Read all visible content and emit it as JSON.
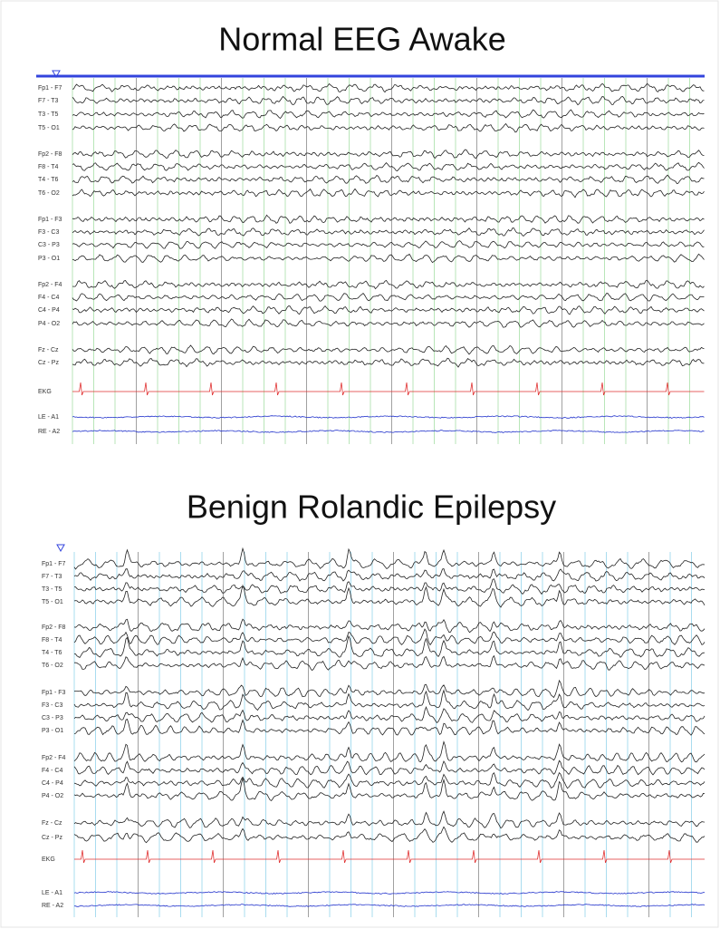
{
  "panels": [
    {
      "title": "Normal EEG Awake",
      "channels": [
        "Fp1 - F7",
        "F7 - T3",
        "T3 - T5",
        "T5 - O1",
        "Fp2 - F8",
        "F8 - T4",
        "T4 - T6",
        "T6 - O2",
        "Fp1 - F3",
        "F3 - C3",
        "C3 - P3",
        "P3 - O1",
        "Fp2 - F4",
        "F4 - C4",
        "C4 - P4",
        "P4 - O2",
        "Fz - Cz",
        "Cz - Pz",
        "EKG",
        "LE - A1",
        "RE - A2"
      ]
    },
    {
      "title": "Benign Rolandic Epilepsy",
      "channels": [
        "Fp1 - F7",
        "F7 - T3",
        "T3 - T5",
        "T5 - O1",
        "Fp2 - F8",
        "F8 - T4",
        "T4 - T6",
        "T6 - O2",
        "Fp1 - F3",
        "F3 - C3",
        "C3 - P3",
        "P3 - O1",
        "Fp2 - F4",
        "F4 - C4",
        "C4 - P4",
        "P4 - O2",
        "Fz - Cz",
        "Cz - Pz",
        "EKG",
        "LE - A1",
        "RE - A2"
      ]
    }
  ]
}
